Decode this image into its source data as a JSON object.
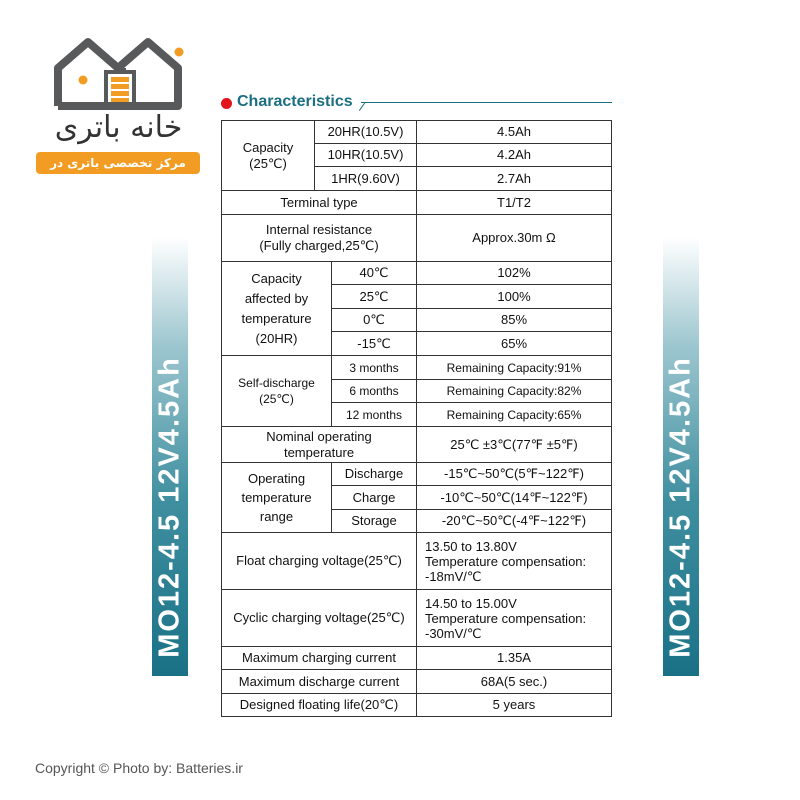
{
  "logo": {
    "name_fa": "خانه باتری",
    "tagline_fa": "مرکز تخصصی باتری در ایران",
    "accent": "#f39c23",
    "dark": "#58595b"
  },
  "banner": {
    "text": "MO12-4.5  12V4.5Ah",
    "color": "#1a7186"
  },
  "section": {
    "title": "Characteristics",
    "bullet_color": "#e3141c",
    "title_color": "#1b6f80"
  },
  "table": {
    "capacity": {
      "label": "Capacity",
      "sub": "(25℃)",
      "rows": [
        {
          "cond": "20HR(10.5V)",
          "value": "4.5Ah"
        },
        {
          "cond": "10HR(10.5V)",
          "value": "4.2Ah"
        },
        {
          "cond": "1HR(9.60V)",
          "value": "2.7Ah"
        }
      ]
    },
    "terminal": {
      "label": "Terminal type",
      "value": "T1/T2"
    },
    "internal": {
      "label1": "Internal resistance",
      "label2": "(Fully charged,25℃)",
      "value": "Approx.30m Ω"
    },
    "cap_temp": {
      "l1": "Capacity",
      "l2": "affected by",
      "l3": "temperature",
      "l4": "(20HR)",
      "rows": [
        {
          "cond": "40℃",
          "value": "102%"
        },
        {
          "cond": "25℃",
          "value": "100%"
        },
        {
          "cond": "0℃",
          "value": "85%"
        },
        {
          "cond": "-15℃",
          "value": "65%"
        }
      ]
    },
    "self_discharge": {
      "l1": "Self-discharge",
      "l2": "(25℃)",
      "rows": [
        {
          "cond": "3 months",
          "value": "Remaining Capacity:91%"
        },
        {
          "cond": "6 months",
          "value": "Remaining Capacity:82%"
        },
        {
          "cond": "12 months",
          "value": "Remaining Capacity:65%"
        }
      ]
    },
    "nominal": {
      "l1": "Nominal operating",
      "l2": "temperature",
      "value": "25℃ ±3℃(77℉ ±5℉)"
    },
    "operating": {
      "l1": "Operating",
      "l2": "temperature",
      "l3": "range",
      "rows": [
        {
          "cond": "Discharge",
          "value": "-15℃~50℃(5℉~122℉)"
        },
        {
          "cond": "Charge",
          "value": "-10℃~50℃(14℉~122℉)"
        },
        {
          "cond": "Storage",
          "value": "-20℃~50℃(-4℉~122℉)"
        }
      ]
    },
    "float": {
      "label": "Float charging voltage(25℃)",
      "v1": "13.50 to 13.80V",
      "v2": "Temperature compensation:",
      "v3": "-18mV/℃"
    },
    "cyclic": {
      "label": "Cyclic charging voltage(25℃)",
      "v1": "14.50 to 15.00V",
      "v2": "Temperature compensation:",
      "v3": "-30mV/℃"
    },
    "max_charge": {
      "label": "Maximum charging current",
      "value": "1.35A"
    },
    "max_discharge": {
      "label": "Maximum discharge current",
      "value": "68A(5 sec.)"
    },
    "life": {
      "label": "Designed floating life(20℃)",
      "value": "5 years"
    }
  },
  "footer": {
    "copyright": "Copyright  © Photo by: Batteries.ir"
  }
}
